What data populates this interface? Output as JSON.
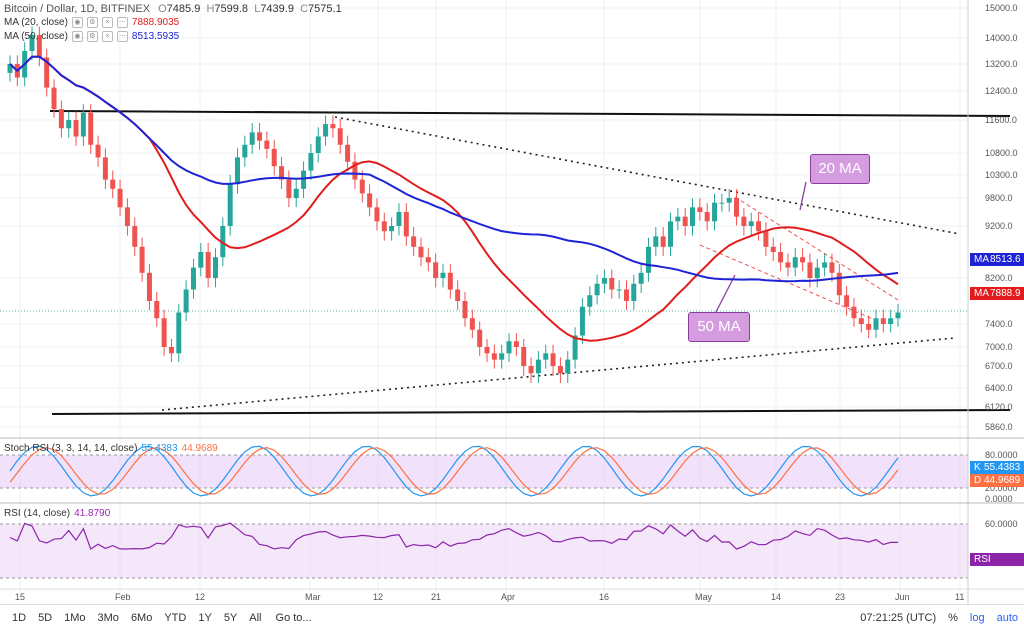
{
  "header": {
    "symbol": "Bitcoin / Dollar, 1D, BITFINEX",
    "open_label": "O",
    "open": "7485.9",
    "high_label": "H",
    "high": "7599.8",
    "low_label": "L",
    "low": "7439.9",
    "close_label": "C",
    "close": "7575.1",
    "ma20_legend": "MA (20, close)",
    "ma20_value": "7888.9035",
    "ma50_legend": "MA (50, close)",
    "ma50_value": "8513.5935"
  },
  "price_axis": [
    "15000.0",
    "14000.0",
    "13200.0",
    "12400.0",
    "11600.0",
    "10800.0",
    "10300.0",
    "9800.0",
    "9200.0",
    "8200.0",
    "7400.0",
    "7000.0",
    "6700.0",
    "6400.0",
    "6120.0",
    "5860.0"
  ],
  "price_labels": {
    "ma50_tag": "MA",
    "ma50_price": "8513.6",
    "ma20_tag": "MA",
    "ma20_price": "7888.9"
  },
  "annotations": {
    "ma20": "20 MA",
    "ma50": "50 MA"
  },
  "stoch": {
    "legend": "Stoch RSI (3, 3, 14, 14, close)",
    "k_value": "55.4383",
    "d_value": "44.9689",
    "k_tag": "K",
    "d_tag": "D",
    "axis": [
      "80.0000",
      "20.0000",
      "0.0000"
    ]
  },
  "rsi": {
    "legend": "RSI (14, close)",
    "value": "41.8790",
    "tag": "RSI",
    "axis": [
      "60.0000"
    ]
  },
  "time_axis": [
    "15",
    "Feb",
    "12",
    "Mar",
    "12",
    "21",
    "Apr",
    "16",
    "May",
    "14",
    "23",
    "Jun",
    "11"
  ],
  "bottom_bar": {
    "timeframes": [
      "1D",
      "5D",
      "1Mo",
      "3Mo",
      "6Mo",
      "YTD",
      "1Y",
      "5Y",
      "All"
    ],
    "goto": "Go to...",
    "clock": "07:21:25 (UTC)",
    "percent": "%",
    "log": "log",
    "auto": "auto"
  },
  "colors": {
    "up": "#26a69a",
    "down": "#ef5350",
    "ma20": "#e21c1c",
    "ma50": "#1f23d6",
    "band": "#e6c9f5"
  },
  "chart_data": {
    "type": "candlestick",
    "title": "Bitcoin / Dollar, 1D, BITFINEX",
    "series_close": [
      13200,
      12800,
      13600,
      14100,
      13400,
      12500,
      11900,
      11400,
      11600,
      11200,
      11800,
      11000,
      10700,
      10200,
      10000,
      9600,
      9200,
      8800,
      8300,
      7800,
      7500,
      7000,
      6900,
      7600,
      8000,
      8400,
      8700,
      8200,
      8600,
      9200,
      10100,
      10700,
      11000,
      11300,
      11100,
      10900,
      10500,
      10200,
      9800,
      10000,
      10400,
      10800,
      11200,
      11500,
      11400,
      11000,
      10600,
      10200,
      9900,
      9600,
      9300,
      9100,
      9200,
      9500,
      9000,
      8800,
      8600,
      8500,
      8200,
      8300,
      8000,
      7800,
      7500,
      7300,
      7000,
      6900,
      6800,
      6900,
      7100,
      7000,
      6700,
      6600,
      6800,
      6900,
      6700,
      6600,
      6800,
      7200,
      7700,
      7900,
      8100,
      8200,
      8000,
      8000,
      7800,
      8100,
      8300,
      8800,
      9000,
      8800,
      9300,
      9400,
      9200,
      9600,
      9500,
      9300,
      9700,
      9700,
      9800,
      9400,
      9200,
      9300,
      9100,
      8800,
      8700,
      8500,
      8400,
      8600,
      8500,
      8200,
      8400,
      8500,
      8300,
      7900,
      7700,
      7500,
      7400,
      7300,
      7500,
      7400,
      7500,
      7600
    ],
    "ma20_note": "20 MA",
    "ma50_note": "50 MA"
  }
}
